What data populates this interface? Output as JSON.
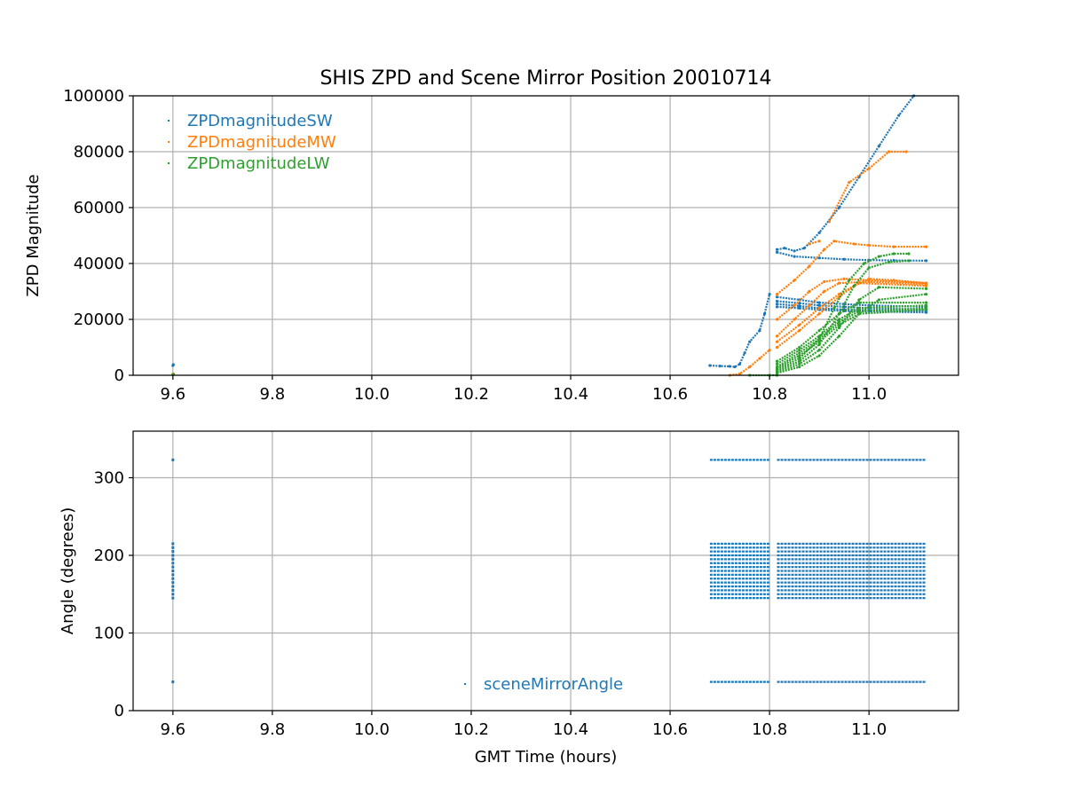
{
  "chart_data": [
    {
      "type": "scatter",
      "title": "SHIS ZPD and Scene Mirror Position 20010714",
      "xlabel": "",
      "ylabel": "ZPD Magnitude",
      "xlim": [
        9.52,
        11.18
      ],
      "ylim": [
        0,
        100000
      ],
      "xticks": [
        9.6,
        9.8,
        10.0,
        10.2,
        10.4,
        10.6,
        10.8,
        11.0
      ],
      "xtick_labels": [
        "9.6",
        "9.8",
        "10.0",
        "10.2",
        "10.4",
        "10.6",
        "10.8",
        "11.0"
      ],
      "yticks": [
        0,
        20000,
        40000,
        60000,
        80000,
        100000
      ],
      "ytick_labels": [
        "0",
        "20000",
        "40000",
        "60000",
        "80000",
        "100000"
      ],
      "grid": true,
      "legend_position": "top-left",
      "series": [
        {
          "name": "ZPDmagnitudeSW",
          "color": "#1f77b4",
          "traces": [
            [
              [
                9.6,
                3500
              ],
              [
                9.601,
                3800
              ]
            ],
            [
              [
                10.68,
                3500
              ],
              [
                10.7,
                3300
              ],
              [
                10.72,
                3200
              ],
              [
                10.73,
                3000
              ],
              [
                10.74,
                4000
              ],
              [
                10.75,
                8000
              ],
              [
                10.76,
                12000
              ],
              [
                10.78,
                16000
              ],
              [
                10.79,
                22000
              ],
              [
                10.8,
                29000
              ]
            ],
            [
              [
                10.815,
                45000
              ],
              [
                10.83,
                45500
              ],
              [
                10.85,
                44500
              ],
              [
                10.87,
                45500
              ],
              [
                10.9,
                51000
              ],
              [
                10.94,
                60000
              ],
              [
                10.98,
                71000
              ],
              [
                11.02,
                82000
              ],
              [
                11.06,
                93000
              ],
              [
                11.09,
                100000
              ]
            ],
            [
              [
                10.815,
                44000
              ],
              [
                10.85,
                42500
              ],
              [
                10.9,
                42000
              ],
              [
                10.95,
                41500
              ],
              [
                11.0,
                41200
              ],
              [
                11.05,
                41100
              ],
              [
                11.115,
                41000
              ]
            ],
            [
              [
                10.815,
                28000
              ],
              [
                10.86,
                27000
              ],
              [
                10.9,
                26000
              ],
              [
                10.95,
                25500
              ],
              [
                11.0,
                25000
              ],
              [
                11.115,
                24500
              ]
            ],
            [
              [
                10.815,
                26500
              ],
              [
                10.86,
                25800
              ],
              [
                10.9,
                25000
              ],
              [
                10.95,
                24500
              ],
              [
                11.0,
                24000
              ],
              [
                11.115,
                23500
              ]
            ],
            [
              [
                10.815,
                25500
              ],
              [
                10.86,
                24800
              ],
              [
                10.9,
                24000
              ],
              [
                10.95,
                23500
              ],
              [
                11.0,
                23200
              ],
              [
                11.115,
                22800
              ]
            ],
            [
              [
                10.815,
                24500
              ],
              [
                10.86,
                24000
              ],
              [
                10.9,
                23500
              ],
              [
                10.95,
                23000
              ],
              [
                11.0,
                22800
              ],
              [
                11.115,
                22500
              ]
            ]
          ]
        },
        {
          "name": "ZPDmagnitudeMW",
          "color": "#ff7f0e",
          "traces": [
            [
              [
                9.6,
                400
              ],
              [
                9.601,
                500
              ]
            ],
            [
              [
                10.72,
                0
              ],
              [
                10.74,
                500
              ],
              [
                10.76,
                3000
              ],
              [
                10.78,
                6000
              ],
              [
                10.8,
                9000
              ]
            ],
            [
              [
                10.815,
                29000
              ],
              [
                10.85,
                34000
              ],
              [
                10.88,
                39000
              ],
              [
                10.91,
                45000
              ],
              [
                10.93,
                48000
              ],
              [
                10.97,
                47000
              ],
              [
                11.0,
                46500
              ],
              [
                11.05,
                46000
              ],
              [
                11.115,
                46000
              ]
            ],
            [
              [
                10.815,
                20000
              ],
              [
                10.85,
                25000
              ],
              [
                10.88,
                30000
              ],
              [
                10.91,
                33500
              ],
              [
                10.95,
                34500
              ],
              [
                11.0,
                34000
              ],
              [
                11.115,
                33000
              ]
            ],
            [
              [
                10.815,
                14000
              ],
              [
                10.85,
                20000
              ],
              [
                10.88,
                25000
              ],
              [
                10.91,
                30000
              ],
              [
                10.94,
                33000
              ],
              [
                11.0,
                33500
              ],
              [
                11.115,
                32500
              ]
            ],
            [
              [
                10.815,
                10000
              ],
              [
                10.86,
                16000
              ],
              [
                10.9,
                22000
              ],
              [
                10.94,
                28000
              ],
              [
                10.97,
                32000
              ],
              [
                11.0,
                34500
              ],
              [
                11.05,
                34000
              ],
              [
                11.115,
                33000
              ]
            ],
            [
              [
                10.815,
                12000
              ],
              [
                10.86,
                18000
              ],
              [
                10.9,
                24000
              ],
              [
                10.94,
                29000
              ],
              [
                10.98,
                33000
              ],
              [
                11.115,
                32000
              ]
            ],
            [
              [
                10.88,
                47000
              ],
              [
                10.9,
                48000
              ]
            ],
            [
              [
                10.92,
                55000
              ],
              [
                10.96,
                69000
              ],
              [
                11.0,
                74000
              ],
              [
                11.04,
                80000
              ],
              [
                11.075,
                80000
              ]
            ]
          ]
        },
        {
          "name": "ZPDmagnitudeLW",
          "color": "#2ca02c",
          "traces": [
            [
              [
                9.6,
                200
              ],
              [
                9.601,
                300
              ]
            ],
            [
              [
                10.76,
                0
              ],
              [
                10.8,
                0
              ],
              [
                10.815,
                0
              ]
            ],
            [
              [
                10.815,
                2000
              ],
              [
                10.86,
                6000
              ],
              [
                10.9,
                13000
              ],
              [
                10.93,
                24000
              ],
              [
                10.96,
                34000
              ],
              [
                10.99,
                40000
              ],
              [
                11.02,
                42500
              ],
              [
                11.05,
                43500
              ],
              [
                11.08,
                43500
              ]
            ],
            [
              [
                10.815,
                1500
              ],
              [
                10.86,
                5000
              ],
              [
                10.9,
                11000
              ],
              [
                10.94,
                22000
              ],
              [
                10.97,
                32000
              ],
              [
                11.0,
                38500
              ],
              [
                11.04,
                40500
              ],
              [
                11.08,
                41000
              ]
            ],
            [
              [
                10.815,
                1000
              ],
              [
                10.86,
                4000
              ],
              [
                10.9,
                9000
              ],
              [
                10.94,
                17000
              ],
              [
                10.98,
                27000
              ],
              [
                11.02,
                31500
              ],
              [
                11.115,
                31000
              ]
            ],
            [
              [
                10.815,
                800
              ],
              [
                10.86,
                3000
              ],
              [
                10.9,
                7000
              ],
              [
                10.94,
                14000
              ],
              [
                10.98,
                22000
              ],
              [
                11.02,
                27000
              ],
              [
                11.115,
                29000
              ]
            ],
            [
              [
                10.815,
                5000
              ],
              [
                10.86,
                10000
              ],
              [
                10.9,
                16000
              ],
              [
                10.94,
                22000
              ],
              [
                10.98,
                26000
              ],
              [
                11.115,
                26000
              ]
            ],
            [
              [
                10.815,
                4000
              ],
              [
                10.86,
                9000
              ],
              [
                10.9,
                14000
              ],
              [
                10.94,
                20000
              ],
              [
                10.98,
                24000
              ],
              [
                11.115,
                25000
              ]
            ],
            [
              [
                10.815,
                3000
              ],
              [
                10.86,
                8000
              ],
              [
                10.9,
                13000
              ],
              [
                10.94,
                19000
              ],
              [
                10.98,
                23000
              ],
              [
                11.115,
                24000
              ]
            ],
            [
              [
                10.815,
                2500
              ],
              [
                10.86,
                7000
              ],
              [
                10.9,
                12000
              ],
              [
                10.94,
                18000
              ],
              [
                10.98,
                22000
              ],
              [
                11.115,
                23500
              ]
            ]
          ]
        }
      ]
    },
    {
      "type": "scatter",
      "title": "",
      "xlabel": "GMT Time (hours)",
      "ylabel": "Angle (degrees)",
      "xlim": [
        9.52,
        11.18
      ],
      "ylim": [
        0,
        360
      ],
      "xticks": [
        9.6,
        9.8,
        10.0,
        10.2,
        10.4,
        10.6,
        10.8,
        11.0
      ],
      "xtick_labels": [
        "9.6",
        "9.8",
        "10.0",
        "10.2",
        "10.4",
        "10.6",
        "10.8",
        "11.0"
      ],
      "yticks": [
        0,
        100,
        200,
        300
      ],
      "ytick_labels": [
        "0",
        "100",
        "200",
        "300"
      ],
      "grid": true,
      "legend_position": "lower-center",
      "series": [
        {
          "name": "sceneMirrorAngle",
          "color": "#1f77b4",
          "angle_levels": [
            37,
            145,
            150,
            155,
            160,
            165,
            170,
            175,
            180,
            185,
            190,
            195,
            200,
            205,
            210,
            215,
            323
          ],
          "segments": [
            [
              10.68,
              10.8
            ],
            [
              10.815,
              11.115
            ]
          ],
          "early_x": 9.6,
          "early_points": [
            37,
            145,
            150,
            155,
            160,
            165,
            170,
            175,
            180,
            185,
            190,
            195,
            200,
            205,
            210,
            215,
            323
          ]
        }
      ]
    }
  ]
}
